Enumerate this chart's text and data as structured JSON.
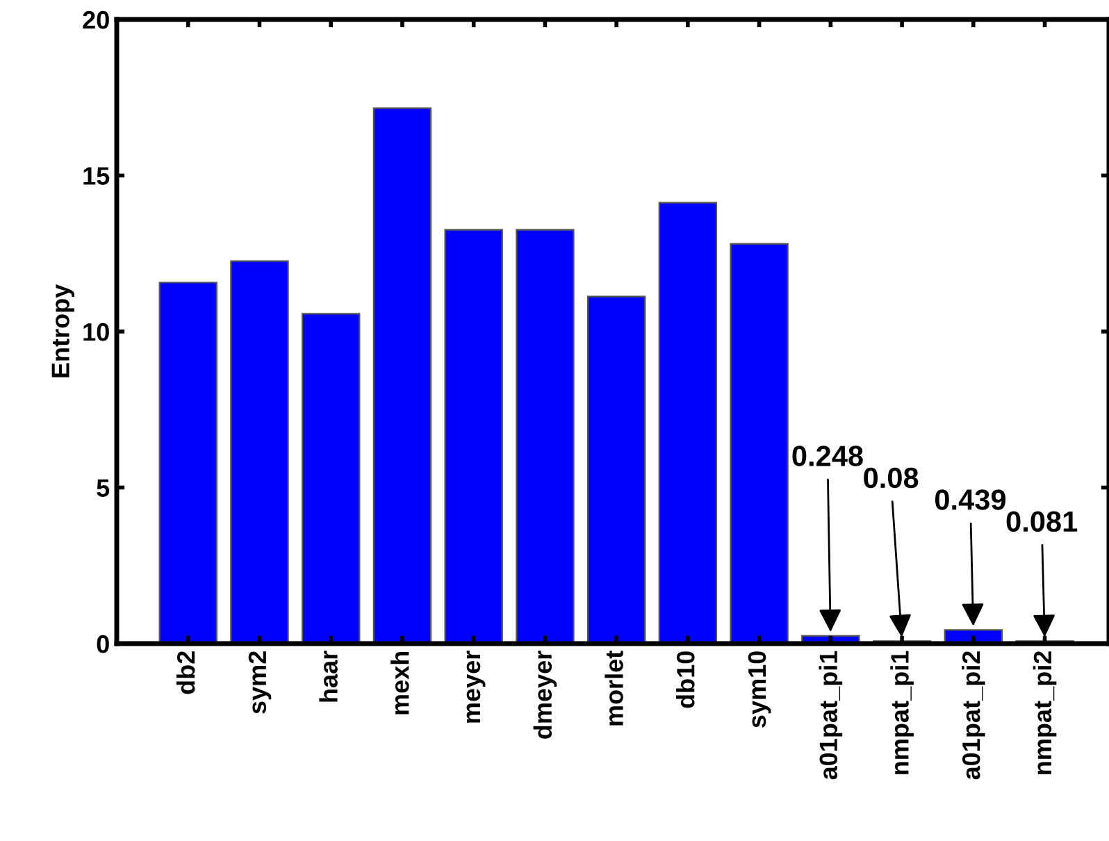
{
  "chart_data": {
    "type": "bar",
    "ylabel": "Entropy",
    "categories": [
      "db2",
      "sym2",
      "haar",
      "mexh",
      "meyer",
      "dmeyer",
      "morlet",
      "db10",
      "sym10",
      "a01pat_pi1",
      "nmpat_pi1",
      "a01pat_pi2",
      "nmpat_pi2"
    ],
    "values": [
      11.57,
      12.26,
      10.57,
      17.16,
      13.26,
      13.26,
      11.12,
      14.13,
      12.81,
      0.248,
      0.08,
      0.439,
      0.081
    ],
    "value_labels": [
      null,
      null,
      null,
      null,
      null,
      null,
      null,
      null,
      null,
      "0.248",
      "0.08",
      "0.439",
      "0.081"
    ],
    "color": "#0000ff",
    "ylim": [
      0,
      20
    ],
    "yticks": [
      0,
      5,
      10,
      15,
      20
    ],
    "grid": false,
    "legend": false
  }
}
